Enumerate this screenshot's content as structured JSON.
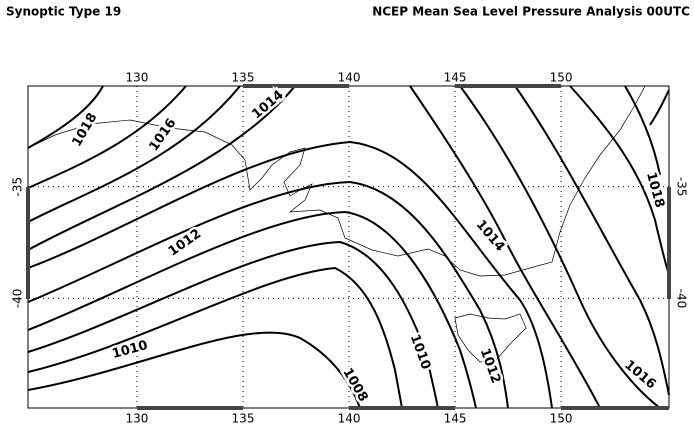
{
  "header": {
    "left_title": "Synoptic Type 19",
    "right_title": "NCEP Mean Sea Level Pressure Analysis 00UTC"
  },
  "map": {
    "xlim": [
      124.86,
      155.09
    ],
    "ylim": [
      -30.5,
      -44.9
    ],
    "xticks": [
      130,
      135,
      140,
      145,
      150
    ],
    "yticks": [
      -35,
      -40
    ],
    "grid": true,
    "contour_labels": [
      1018,
      1016,
      1014,
      1012,
      1010,
      1008,
      1014,
      1010,
      1012,
      1016,
      1018
    ]
  }
}
